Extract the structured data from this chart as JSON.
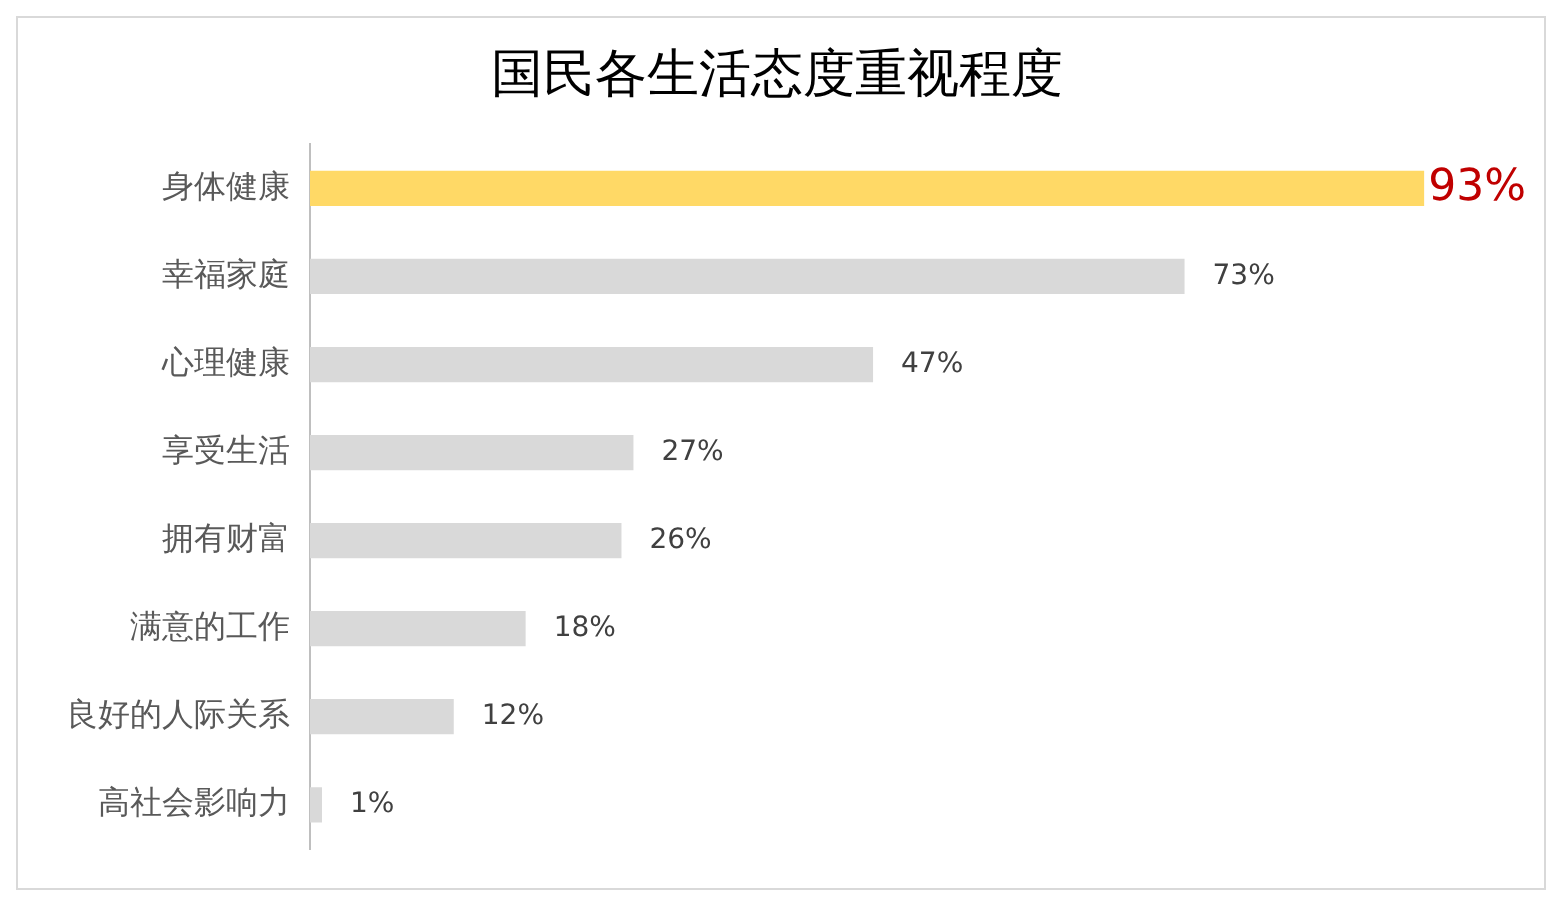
{
  "chart_data": {
    "type": "bar",
    "orientation": "horizontal",
    "title": "国民各生活态度重视程度",
    "categories": [
      "身体健康",
      "幸福家庭",
      "心理健康",
      "享受生活",
      "拥有财富",
      "满意的工作",
      "良好的人际关系",
      "高社会影响力"
    ],
    "values": [
      93,
      73,
      47,
      27,
      26,
      18,
      12,
      1
    ],
    "value_labels": [
      "93%",
      "73%",
      "47%",
      "27%",
      "26%",
      "18%",
      "12%",
      "1%"
    ],
    "colors": [
      "#ffd966",
      "#d9d9d9",
      "#d9d9d9",
      "#d9d9d9",
      "#d9d9d9",
      "#d9d9d9",
      "#d9d9d9",
      "#d9d9d9"
    ],
    "legend": false
  }
}
